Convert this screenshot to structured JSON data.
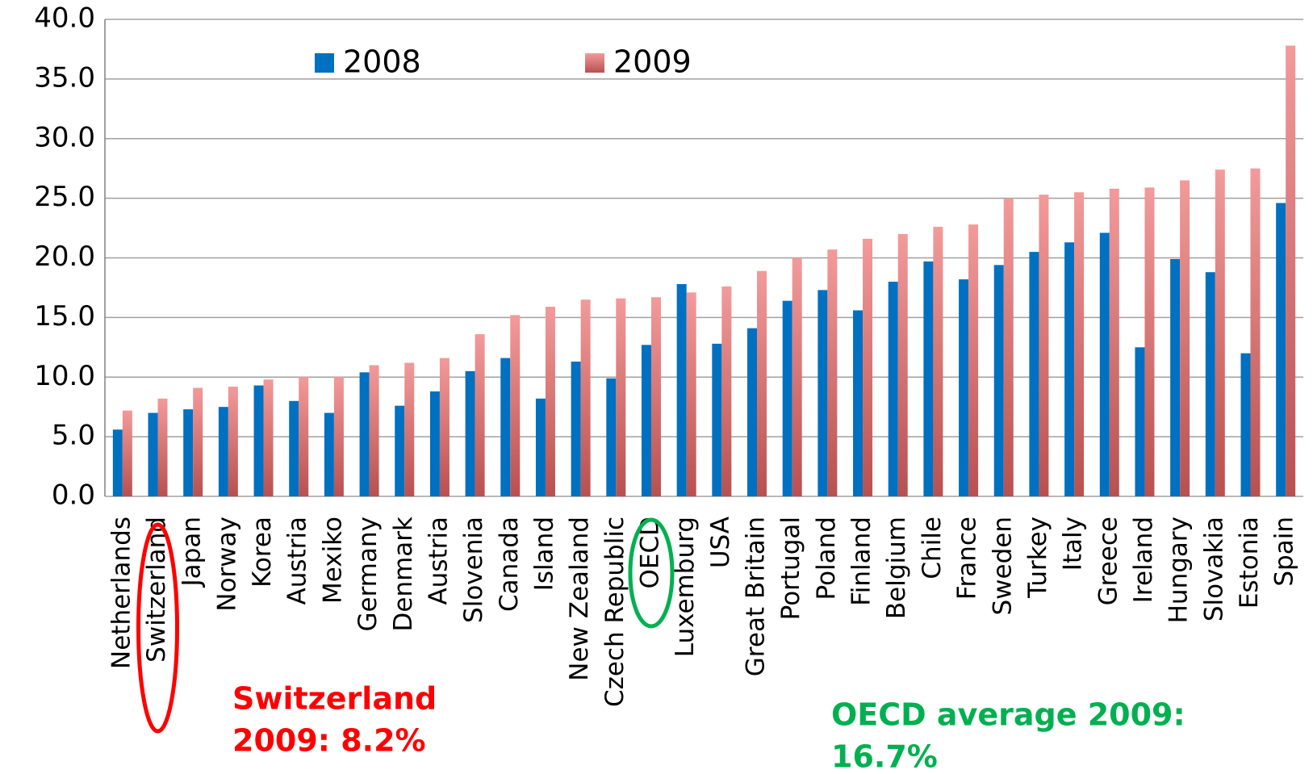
{
  "chart_data": {
    "type": "bar",
    "categories": [
      "Netherlands",
      "Switzerland",
      "Japan",
      "Norway",
      "Korea",
      "Austria",
      "Mexiko",
      "Germany",
      "Denmark",
      "Austria",
      "Slovenia",
      "Canada",
      "Island",
      "New Zealand",
      "Czech Republic",
      "OECD",
      "Luxemburg",
      "USA",
      "Great Britain",
      "Portugal",
      "Poland",
      "Finland",
      "Belgium",
      "Chile",
      "France",
      "Sweden",
      "Turkey",
      "Italy",
      "Greece",
      "Ireland",
      "Hungary",
      "Slovakia",
      "Estonia",
      "Spain"
    ],
    "series": [
      {
        "name": "2008",
        "color": "#0070c0",
        "values": [
          5.6,
          7.0,
          7.3,
          7.5,
          9.3,
          8.0,
          7.0,
          10.4,
          7.6,
          8.8,
          10.5,
          11.6,
          8.2,
          11.3,
          9.9,
          12.7,
          17.8,
          12.8,
          14.1,
          16.4,
          17.3,
          15.6,
          18.0,
          19.7,
          18.2,
          19.4,
          20.5,
          21.3,
          22.1,
          12.5,
          19.9,
          18.8,
          12.0,
          24.6
        ]
      },
      {
        "name": "2009",
        "color": "#e87878",
        "values": [
          7.2,
          8.2,
          9.1,
          9.2,
          9.8,
          10.0,
          10.0,
          11.0,
          11.2,
          11.6,
          13.6,
          15.2,
          15.9,
          16.5,
          16.6,
          16.7,
          17.1,
          17.6,
          18.9,
          20.0,
          20.7,
          21.6,
          22.0,
          22.6,
          22.8,
          25.0,
          25.3,
          25.5,
          25.8,
          25.9,
          26.5,
          27.4,
          27.5,
          37.8
        ]
      }
    ],
    "ylim": [
      0,
      40
    ],
    "yticks": [
      {
        "value": 0,
        "label": "0.0"
      },
      {
        "value": 5,
        "label": "5.0"
      },
      {
        "value": 10,
        "label": "10.0"
      },
      {
        "value": 15,
        "label": "15.0"
      },
      {
        "value": 20,
        "label": "20.0"
      },
      {
        "value": 25,
        "label": "25.0"
      },
      {
        "value": 30,
        "label": "30.0"
      },
      {
        "value": 35,
        "label": "35.0"
      },
      {
        "value": 40,
        "label": "40.0"
      }
    ],
    "grid": true,
    "annotations": [
      {
        "lines": [
          "Switzerland",
          "2009: 8.2%"
        ],
        "color": "#ff0000"
      },
      {
        "lines": [
          "OECD average 2009:",
          "16.7%"
        ],
        "color": "#00b050"
      }
    ]
  }
}
